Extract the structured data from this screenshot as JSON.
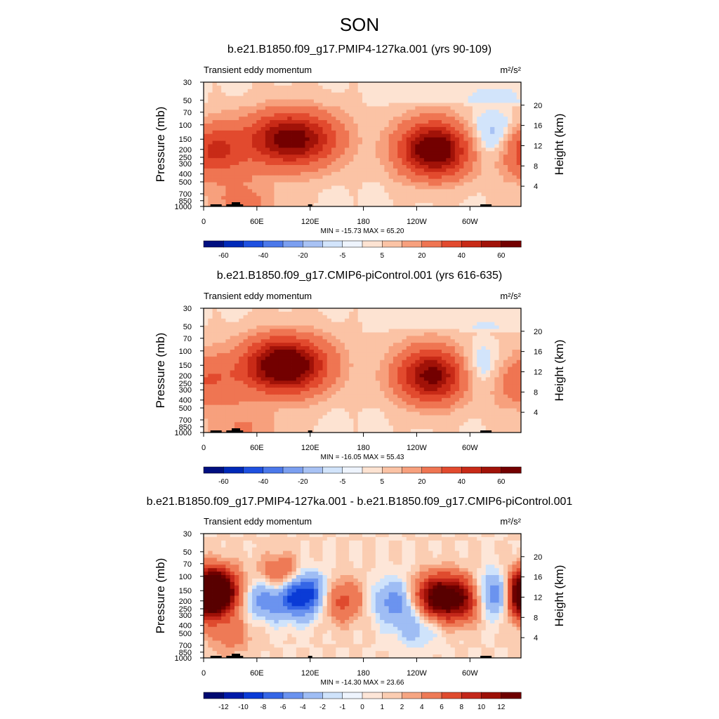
{
  "figure": {
    "title": "SON"
  },
  "colors": {
    "lines": "#000000",
    "topography": "#000000",
    "blues": [
      "#000f80",
      "#0029b8",
      "#1e50e0",
      "#4b78ea",
      "#7b9ff0",
      "#a8c2f4",
      "#d2e4fb"
    ],
    "reds": [
      "#fde3d2",
      "#fbc3a5",
      "#f7a07d",
      "#ef7552",
      "#e24a2e",
      "#c82a17",
      "#a11208",
      "#730000"
    ]
  },
  "chart_data": [
    {
      "type": "heatmap",
      "title": "b.e21.B1850.f09_g17.PMIP4-127ka.001 (yrs 90-109)",
      "subtitle": "Transient eddy momentum",
      "units_label": "m²/s²",
      "ylabel": "Pressure (mb)",
      "y2label": "Height (km)",
      "x_ticks": [
        "0",
        "60E",
        "120E",
        "180",
        "120W",
        "60W"
      ],
      "x_tick_degrees": [
        0,
        60,
        120,
        180,
        240,
        300
      ],
      "xlim": [
        0,
        357.5
      ],
      "y_ticks": [
        30,
        50,
        70,
        100,
        150,
        200,
        250,
        300,
        400,
        500,
        700,
        850,
        1000
      ],
      "ylim": [
        1000,
        30
      ],
      "y_scale": "log",
      "height_ticks_km": [
        4,
        8,
        12,
        16,
        20
      ],
      "stats": "MIN = -15.73  MAX =  65.20",
      "colorbar_labels": [
        "-60",
        "-40",
        "-20",
        "-5",
        "5",
        "20",
        "40",
        "60"
      ],
      "features": [
        {
          "lon": 120,
          "p": 150,
          "value": 30
        },
        {
          "lon": 85,
          "p": 150,
          "value": 40
        },
        {
          "lon": 260,
          "p": 200,
          "value": 65
        },
        {
          "lon": 10,
          "p": 200,
          "value": 35
        },
        {
          "lon": 330,
          "p": 150,
          "value": -15
        },
        {
          "lon": 43,
          "p": 900,
          "value": 12
        }
      ]
    },
    {
      "type": "heatmap",
      "title": "b.e21.B1850.f09_g17.CMIP6-piControl.001 (yrs 616-635)",
      "subtitle": "Transient eddy momentum",
      "units_label": "m²/s²",
      "ylabel": "Pressure (mb)",
      "y2label": "Height (km)",
      "x_ticks": [
        "0",
        "60E",
        "120E",
        "180",
        "120W",
        "60W"
      ],
      "x_tick_degrees": [
        0,
        60,
        120,
        180,
        240,
        300
      ],
      "xlim": [
        0,
        357.5
      ],
      "y_ticks": [
        30,
        50,
        70,
        100,
        150,
        200,
        250,
        300,
        400,
        500,
        700,
        850,
        1000
      ],
      "ylim": [
        1000,
        30
      ],
      "y_scale": "log",
      "height_ticks_km": [
        4,
        8,
        12,
        16,
        20
      ],
      "stats": "MIN = -16.05  MAX =  55.43",
      "colorbar_labels": [
        "-60",
        "-40",
        "-20",
        "-5",
        "5",
        "20",
        "40",
        "60"
      ],
      "features": [
        {
          "lon": 110,
          "p": 150,
          "value": 30
        },
        {
          "lon": 82,
          "p": 150,
          "value": 50
        },
        {
          "lon": 258,
          "p": 200,
          "value": 55
        },
        {
          "lon": 10,
          "p": 220,
          "value": 15
        },
        {
          "lon": 310,
          "p": 180,
          "value": -14
        },
        {
          "lon": 340,
          "p": 230,
          "value": 8
        },
        {
          "lon": 43,
          "p": 900,
          "value": 10
        }
      ]
    },
    {
      "type": "heatmap",
      "title": "b.e21.B1850.f09_g17.PMIP4-127ka.001 - b.e21.B1850.f09_g17.CMIP6-piControl.001",
      "subtitle": "Transient eddy momentum",
      "units_label": "m²/s²",
      "ylabel": "Pressure (mb)",
      "y2label": "Height (km)",
      "x_ticks": [
        "0",
        "60E",
        "120E",
        "180",
        "120W",
        "60W"
      ],
      "x_tick_degrees": [
        0,
        60,
        120,
        180,
        240,
        300
      ],
      "xlim": [
        0,
        357.5
      ],
      "y_ticks": [
        30,
        50,
        70,
        100,
        150,
        200,
        250,
        300,
        400,
        500,
        700,
        850,
        1000
      ],
      "ylim": [
        1000,
        30
      ],
      "y_scale": "log",
      "height_ticks_km": [
        4,
        8,
        12,
        16,
        20
      ],
      "stats": "MIN = -14.30  MAX =  23.66",
      "colorbar_labels": [
        "-12",
        "-10",
        "-8",
        "-6",
        "-4",
        "-2",
        "-1",
        "0",
        "1",
        "2",
        "4",
        "6",
        "8",
        "10",
        "12"
      ],
      "features": [
        {
          "lon": 12,
          "p": 150,
          "value": 18
        },
        {
          "lon": 88,
          "p": 110,
          "value": 7
        },
        {
          "lon": 110,
          "p": 165,
          "value": -12
        },
        {
          "lon": 70,
          "p": 180,
          "value": -6
        },
        {
          "lon": 155,
          "p": 200,
          "value": 5
        },
        {
          "lon": 215,
          "p": 200,
          "value": -5
        },
        {
          "lon": 262,
          "p": 180,
          "value": 12
        },
        {
          "lon": 290,
          "p": 190,
          "value": 9
        },
        {
          "lon": 335,
          "p": 170,
          "value": -11
        },
        {
          "lon": 357,
          "p": 180,
          "value": 12
        },
        {
          "lon": 240,
          "p": 400,
          "value": -3
        },
        {
          "lon": 30,
          "p": 500,
          "value": 3
        }
      ]
    }
  ]
}
